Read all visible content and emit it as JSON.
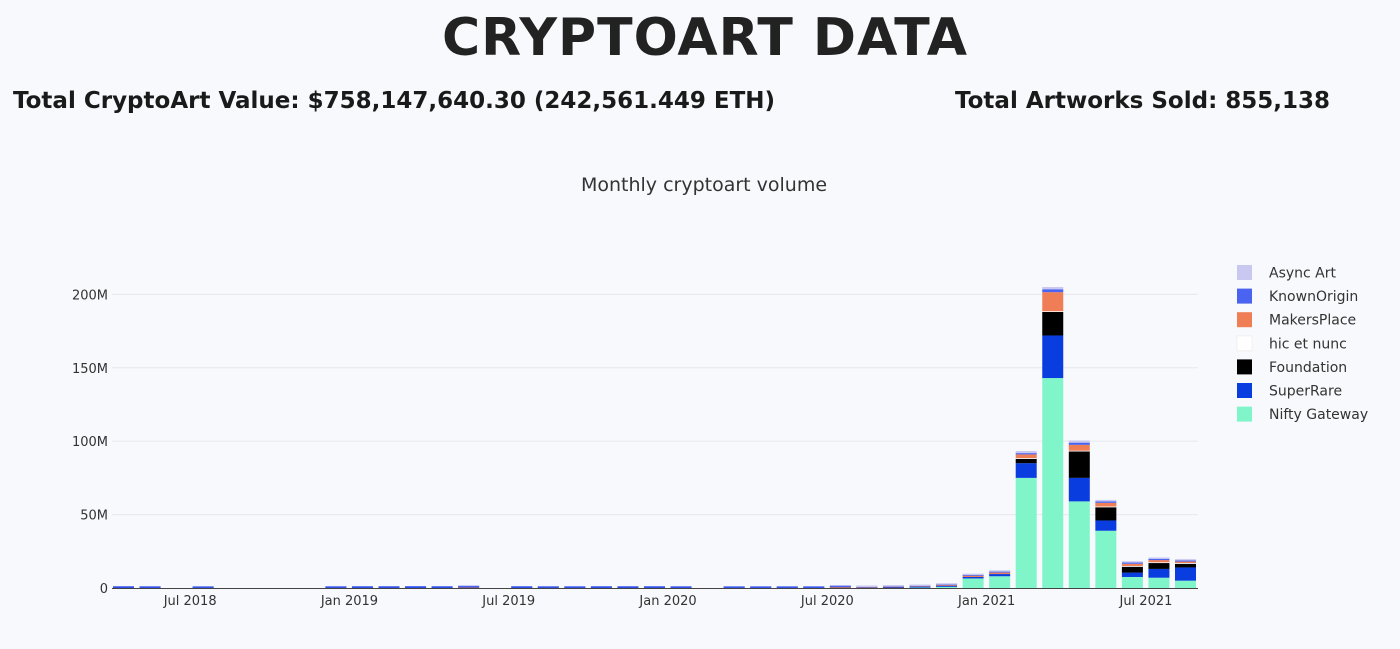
{
  "header": {
    "title": "CRYPTOART DATA",
    "total_value": "Total CryptoArt Value: $758,147,640.30 (242,561.449 ETH)",
    "total_sold": "Total Artworks Sold: 855,138"
  },
  "chart_data": {
    "type": "bar",
    "stacked": true,
    "title": "Monthly cryptoart volume",
    "xlabel": "",
    "ylabel": "",
    "ylim": [
      0,
      220000000
    ],
    "yticks": [
      0,
      50000000,
      100000000,
      150000000,
      200000000
    ],
    "ytick_labels": [
      "0",
      "50M",
      "100M",
      "150M",
      "200M"
    ],
    "xtick_labels": [
      {
        "label": "Jul 2018",
        "category": "2018-07"
      },
      {
        "label": "Jan 2019",
        "category": "2019-01"
      },
      {
        "label": "Jul 2019",
        "category": "2019-07"
      },
      {
        "label": "Jan 2020",
        "category": "2020-01"
      },
      {
        "label": "Jul 2020",
        "category": "2020-07"
      },
      {
        "label": "Jan 2021",
        "category": "2021-01"
      },
      {
        "label": "Jul 2021",
        "category": "2021-07"
      }
    ],
    "legend_position": "right",
    "grid": true,
    "categories": [
      "2018-04",
      "2018-05",
      "2018-06",
      "2018-07",
      "2018-08",
      "2018-09",
      "2018-10",
      "2018-11",
      "2018-12",
      "2019-01",
      "2019-02",
      "2019-03",
      "2019-04",
      "2019-05",
      "2019-06",
      "2019-07",
      "2019-08",
      "2019-09",
      "2019-10",
      "2019-11",
      "2019-12",
      "2020-01",
      "2020-02",
      "2020-03",
      "2020-04",
      "2020-05",
      "2020-06",
      "2020-07",
      "2020-08",
      "2020-09",
      "2020-10",
      "2020-11",
      "2020-12",
      "2021-01",
      "2021-02",
      "2021-03",
      "2021-04",
      "2021-05",
      "2021-06",
      "2021-07",
      "2021-08"
    ],
    "series": [
      {
        "name": "Nifty Gateway",
        "color": "#7ff5c9",
        "values": [
          0,
          0,
          0,
          0,
          0,
          0,
          0,
          0,
          0,
          0,
          0,
          0,
          0,
          0,
          0,
          0,
          0,
          0,
          0,
          0,
          0,
          0,
          0,
          0,
          0,
          0,
          0,
          0,
          0,
          0,
          300000,
          800000,
          6500000,
          8000000,
          75000000,
          143000000,
          59000000,
          39000000,
          7500000,
          7000000,
          5000000
        ]
      },
      {
        "name": "SuperRare",
        "color": "#0a3de0",
        "values": [
          300000,
          250000,
          0,
          200000,
          0,
          0,
          0,
          0,
          250000,
          300000,
          300000,
          350000,
          300000,
          300000,
          0,
          300000,
          250000,
          250000,
          300000,
          300000,
          300000,
          250000,
          0,
          200000,
          200000,
          200000,
          200000,
          200000,
          200000,
          500000,
          500000,
          700000,
          1000000,
          1500000,
          10000000,
          29000000,
          16000000,
          7000000,
          3000000,
          6000000,
          9000000
        ]
      },
      {
        "name": "Foundation",
        "color": "#000000",
        "values": [
          0,
          0,
          0,
          0,
          0,
          0,
          0,
          0,
          0,
          0,
          0,
          0,
          0,
          0,
          0,
          0,
          0,
          0,
          0,
          0,
          0,
          0,
          0,
          0,
          0,
          0,
          0,
          0,
          0,
          0,
          0,
          0,
          0,
          0,
          3000000,
          16000000,
          18000000,
          9000000,
          4000000,
          4000000,
          2500000
        ]
      },
      {
        "name": "hic et nunc",
        "color": "#ffffff",
        "values": [
          0,
          0,
          0,
          0,
          0,
          0,
          0,
          0,
          0,
          0,
          0,
          0,
          0,
          0,
          0,
          0,
          0,
          0,
          0,
          0,
          0,
          0,
          0,
          0,
          0,
          0,
          0,
          0,
          0,
          0,
          0,
          0,
          0,
          0,
          500000,
          500000,
          500000,
          500000,
          500000,
          500000,
          500000
        ]
      },
      {
        "name": "MakersPlace",
        "color": "#ef7d56",
        "values": [
          0,
          0,
          0,
          0,
          0,
          0,
          0,
          0,
          0,
          0,
          0,
          0,
          0,
          300000,
          0,
          0,
          0,
          0,
          0,
          0,
          0,
          0,
          0,
          0,
          0,
          0,
          0,
          500000,
          300000,
          300000,
          300000,
          500000,
          800000,
          1000000,
          2500000,
          13000000,
          4000000,
          2500000,
          1500000,
          1500000,
          1000000
        ]
      },
      {
        "name": "KnownOrigin",
        "color": "#4a63f0",
        "values": [
          200000,
          150000,
          0,
          150000,
          0,
          0,
          0,
          0,
          150000,
          150000,
          150000,
          150000,
          150000,
          150000,
          0,
          150000,
          150000,
          150000,
          150000,
          150000,
          150000,
          150000,
          0,
          100000,
          100000,
          100000,
          100000,
          100000,
          100000,
          200000,
          300000,
          300000,
          500000,
          600000,
          800000,
          2000000,
          1500000,
          1000000,
          800000,
          800000,
          700000
        ]
      },
      {
        "name": "Async Art",
        "color": "#c8c8f0",
        "values": [
          0,
          0,
          0,
          0,
          0,
          0,
          0,
          0,
          0,
          0,
          0,
          0,
          0,
          0,
          0,
          0,
          0,
          0,
          0,
          0,
          0,
          0,
          0,
          0,
          0,
          0,
          0,
          0,
          100000,
          200000,
          300000,
          400000,
          500000,
          800000,
          1500000,
          1500000,
          1500000,
          1000000,
          800000,
          1000000,
          800000
        ]
      }
    ],
    "legend_order": [
      "Async Art",
      "KnownOrigin",
      "MakersPlace",
      "hic et nunc",
      "Foundation",
      "SuperRare",
      "Nifty Gateway"
    ]
  }
}
